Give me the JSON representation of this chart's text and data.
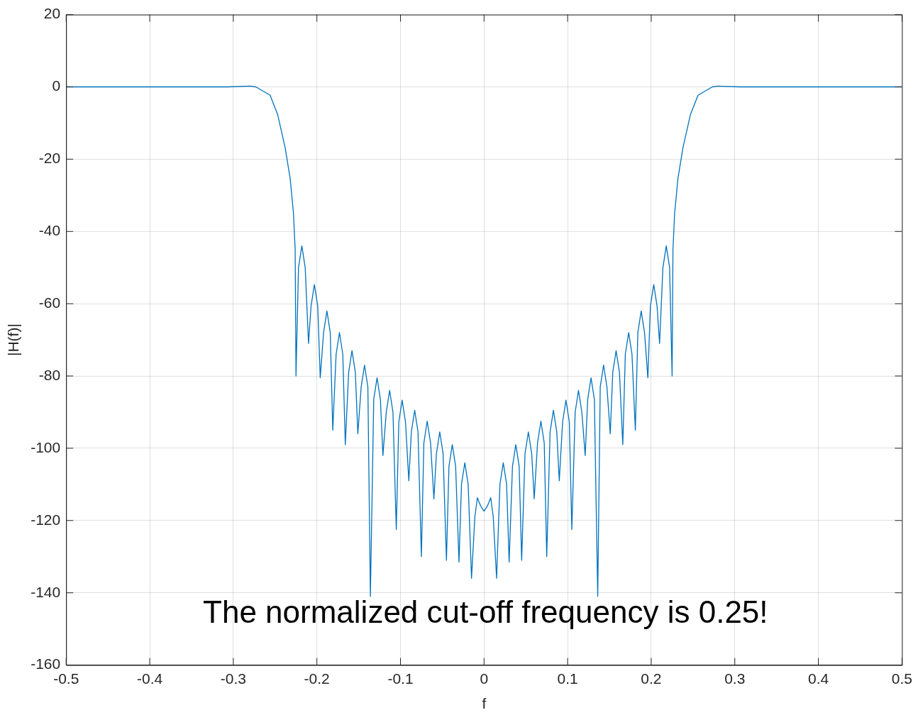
{
  "chart_data": {
    "type": "line",
    "xlabel": "f",
    "ylabel": "|H(f)|",
    "xlim": [
      -0.5,
      0.5
    ],
    "ylim": [
      -160,
      20
    ],
    "xticks": [
      -0.5,
      -0.4,
      -0.3,
      -0.2,
      -0.1,
      0,
      0.1,
      0.2,
      0.3,
      0.4,
      0.5
    ],
    "yticks": [
      -160,
      -140,
      -120,
      -100,
      -80,
      -60,
      -40,
      -20,
      0,
      20
    ],
    "grid": true,
    "legend": false,
    "marker": "none",
    "line_style": "solid",
    "annotations": [
      "The normalized cut-off frequency is 0.25!"
    ],
    "series": [
      {
        "color": "#0072bd",
        "x": [
          -0.5,
          -0.307,
          -0.28,
          -0.273,
          -0.256,
          -0.247,
          -0.238,
          -0.232,
          -0.228,
          -0.226,
          -0.225,
          -0.222,
          -0.218,
          -0.214,
          -0.21,
          -0.207,
          -0.203,
          -0.199,
          -0.196,
          -0.192,
          -0.188,
          -0.184,
          -0.181,
          -0.177,
          -0.173,
          -0.169,
          -0.166,
          -0.162,
          -0.158,
          -0.154,
          -0.151,
          -0.147,
          -0.143,
          -0.139,
          -0.136,
          -0.132,
          -0.128,
          -0.124,
          -0.121,
          -0.117,
          -0.113,
          -0.109,
          -0.105,
          -0.102,
          -0.098,
          -0.094,
          -0.09,
          -0.087,
          -0.083,
          -0.079,
          -0.075,
          -0.072,
          -0.068,
          -0.064,
          -0.06,
          -0.057,
          -0.053,
          -0.049,
          -0.045,
          -0.042,
          -0.038,
          -0.034,
          -0.03,
          -0.027,
          -0.023,
          -0.019,
          -0.015,
          -0.011,
          -0.008,
          -0.004,
          0,
          0.004,
          0.008,
          0.011,
          0.015,
          0.019,
          0.023,
          0.027,
          0.03,
          0.034,
          0.038,
          0.042,
          0.045,
          0.049,
          0.053,
          0.057,
          0.06,
          0.064,
          0.068,
          0.072,
          0.075,
          0.079,
          0.083,
          0.087,
          0.09,
          0.094,
          0.098,
          0.102,
          0.105,
          0.109,
          0.113,
          0.117,
          0.121,
          0.124,
          0.128,
          0.132,
          0.136,
          0.139,
          0.143,
          0.147,
          0.151,
          0.154,
          0.158,
          0.162,
          0.166,
          0.169,
          0.173,
          0.177,
          0.181,
          0.184,
          0.188,
          0.192,
          0.196,
          0.199,
          0.203,
          0.207,
          0.21,
          0.214,
          0.218,
          0.222,
          0.225,
          0.226,
          0.228,
          0.232,
          0.238,
          0.247,
          0.256,
          0.273,
          0.28,
          0.307,
          0.5
        ],
        "values": [
          0,
          0,
          0.2,
          0,
          -2.3,
          -7.6,
          -16.8,
          -25.3,
          -35,
          -45,
          -80,
          -50,
          -44,
          -50,
          -71,
          -60.7,
          -54.7,
          -60.7,
          -80.5,
          -68,
          -62,
          -68,
          -95,
          -74,
          -68,
          -74,
          -99,
          -79,
          -73,
          -79,
          -96,
          -83,
          -77,
          -83,
          -141,
          -86.5,
          -80.5,
          -86.5,
          -102,
          -90,
          -84,
          -90,
          -122.5,
          -92.7,
          -86.7,
          -92.7,
          -109,
          -95.5,
          -89.5,
          -95.5,
          -130,
          -98.5,
          -92.5,
          -98.5,
          -114,
          -101.5,
          -95.5,
          -101.5,
          -131,
          -105,
          -99,
          -105,
          -131.5,
          -110,
          -104,
          -110,
          -136,
          -119,
          -113.7,
          -116,
          -117.4,
          -116,
          -113.7,
          -119,
          -136,
          -110,
          -104,
          -110,
          -131.5,
          -105,
          -99,
          -105,
          -131,
          -101.5,
          -95.5,
          -101.5,
          -114,
          -98.5,
          -92.5,
          -98.5,
          -130,
          -95.5,
          -89.5,
          -95.5,
          -109,
          -92.7,
          -86.7,
          -92.7,
          -122.5,
          -90,
          -84,
          -90,
          -102,
          -86.5,
          -80.5,
          -86.5,
          -141,
          -83,
          -77,
          -83,
          -96,
          -79,
          -73,
          -79,
          -99,
          -74,
          -68,
          -74,
          -95,
          -68,
          -62,
          -68,
          -80.5,
          -60.7,
          -54.7,
          -60.7,
          -71,
          -50,
          -44,
          -50,
          -80,
          -45,
          -35,
          -25.3,
          -16.8,
          -7.6,
          -2.3,
          0,
          0.2,
          0,
          0
        ]
      }
    ]
  }
}
